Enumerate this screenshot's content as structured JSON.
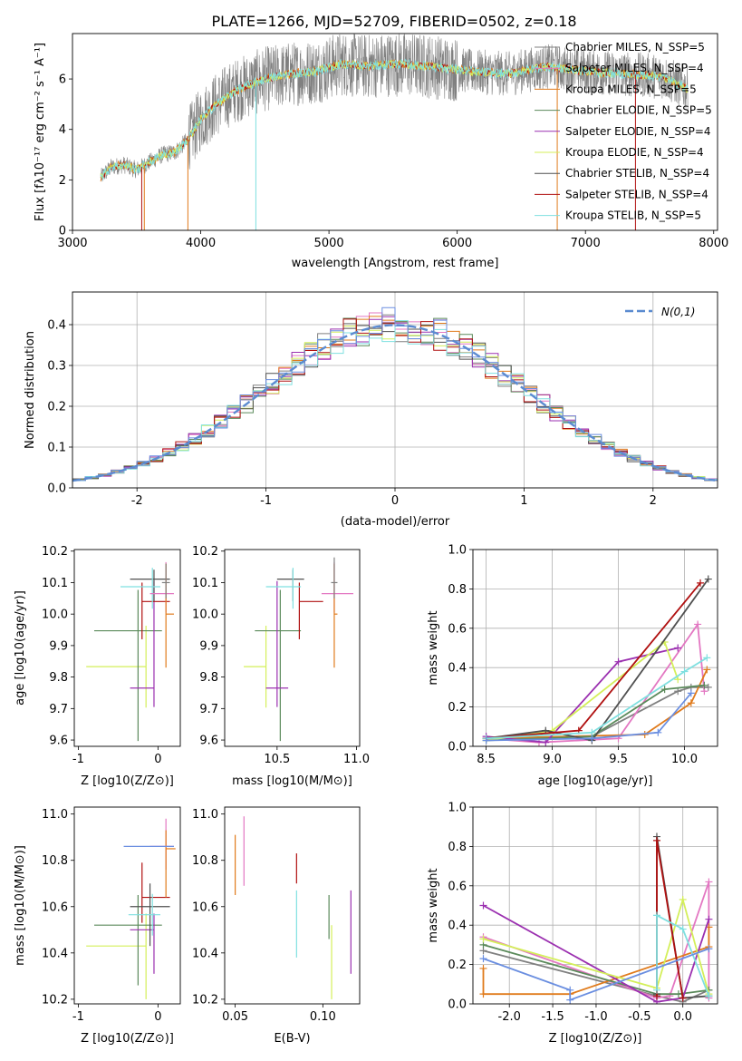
{
  "figure_title": "PLATE=1266, MJD=52709, FIBERID=0502, z=0.18",
  "colors": {
    "Chabrier MILES": "#808080",
    "Salpeter MILES": "#e377c2",
    "Kroupa MILES": "#e07b1c",
    "Chabrier ELODIE": "#5b8a5b",
    "Salpeter ELODIE": "#9b30b0",
    "Kroupa ELODIE": "#d4ef5a",
    "Chabrier STELIB": "#505050",
    "Salpeter STELIB": "#b01010",
    "Kroupa STELIB": "#7fe0e0",
    "blue": "#6a8ee0",
    "gaussian": "#5b8bd0"
  },
  "chart_data": [
    {
      "id": "spectrum",
      "type": "line",
      "xlabel": "wavelength [Angstrom, rest frame]",
      "ylabel": "Flux [fλ10⁻¹⁷ erg cm⁻² s⁻¹ A⁻¹]",
      "xlim": [
        3000,
        8030
      ],
      "ylim": [
        0,
        7.8
      ],
      "xticks": [
        3000,
        4000,
        5000,
        6000,
        7000,
        8000
      ],
      "yticks": [
        0,
        2,
        4,
        6
      ],
      "spectrum_continuum": {
        "x": [
          3220,
          3300,
          3400,
          3500,
          3600,
          3700,
          3800,
          3900,
          4000,
          4100,
          4200,
          4300,
          4500,
          4700,
          4900,
          5100,
          5300,
          5500,
          5800,
          6100,
          6400,
          6700,
          7000,
          7300,
          7600,
          7800
        ],
        "y": [
          2.1,
          2.5,
          2.6,
          2.4,
          2.7,
          3.0,
          3.1,
          3.6,
          4.4,
          4.9,
          5.3,
          5.6,
          6.0,
          6.2,
          6.3,
          6.6,
          6.5,
          6.6,
          6.5,
          6.3,
          6.2,
          6.5,
          6.3,
          6.2,
          6.1,
          5.6
        ]
      },
      "legend": [
        "Chabrier MILES, N_SSP=5",
        "Salpeter MILES, N_SSP=4",
        "Kroupa MILES, N_SSP=5",
        "Chabrier ELODIE, N_SSP=5",
        "Salpeter ELODIE, N_SSP=4",
        "Kroupa ELODIE, N_SSP=4",
        "Chabrier STELIB, N_SSP=4",
        "Salpeter STELIB, N_SSP=4",
        "Kroupa STELIB, N_SSP=5"
      ],
      "legend_placement": "right"
    },
    {
      "id": "residuals",
      "type": "histogram",
      "xlabel": "(data-model)/error",
      "ylabel": "Normed distribution",
      "xlim": [
        -2.5,
        2.5
      ],
      "ylim": [
        0,
        0.48
      ],
      "xticks": [
        -2,
        -1,
        0,
        1,
        2
      ],
      "yticks": [
        0.0,
        0.1,
        0.2,
        0.3,
        0.4
      ],
      "bin_width": 0.1,
      "curve_label": "N(0,1)",
      "grid": true,
      "legend_placement": "top-right"
    },
    {
      "id": "age_vs_Z",
      "type": "errorbar",
      "xlabel": "Z [log10(Z/Z⊙)]",
      "ylabel": "age  [log10(age/yr)]",
      "xlim": [
        -1.05,
        0.28
      ],
      "ylim": [
        9.58,
        10.205
      ],
      "xticks": [
        -1,
        0
      ],
      "yticks": [
        9.6,
        9.7,
        9.8,
        9.9,
        10.0,
        10.1,
        10.2
      ],
      "points": [
        {
          "series": "Kroupa ELODIE",
          "x": -0.15,
          "xerr": [
            0.75,
            0.0
          ],
          "y": 9.833,
          "yerr": [
            0.13,
            0.13
          ]
        },
        {
          "series": "Chabrier ELODIE",
          "x": -0.25,
          "xerr": [
            0.55,
            0.3
          ],
          "y": 9.947,
          "yerr": [
            0.35,
            0.13
          ]
        },
        {
          "series": "Salpeter ELODIE",
          "x": -0.05,
          "xerr": [
            0.3,
            0.0
          ],
          "y": 9.765,
          "yerr": [
            0.06,
            0.34
          ]
        },
        {
          "series": "Salpeter STELIB",
          "x": -0.2,
          "xerr": [
            0.0,
            0.35
          ],
          "y": 10.04,
          "yerr": [
            0.12,
            0.06
          ]
        },
        {
          "series": "Chabrier STELIB",
          "x": -0.05,
          "xerr": [
            0.3,
            0.2
          ],
          "y": 10.111,
          "yerr": [
            0.07,
            0.03
          ]
        },
        {
          "series": "Kroupa STELIB",
          "x": -0.07,
          "xerr": [
            0.4,
            0.1
          ],
          "y": 10.087,
          "yerr": [
            0.07,
            0.06
          ]
        },
        {
          "series": "Salpeter MILES",
          "x": 0.1,
          "xerr": [
            0.2,
            0.1
          ],
          "y": 10.065,
          "yerr": [
            0.06,
            0.1
          ]
        },
        {
          "series": "Kroupa MILES",
          "x": 0.1,
          "xerr": [
            0.0,
            0.1
          ],
          "y": 10.0,
          "yerr": [
            0.17,
            0.16
          ]
        },
        {
          "series": "Chabrier MILES",
          "x": 0.1,
          "xerr": [
            0.05,
            0.05
          ],
          "y": 10.1,
          "yerr": [
            0.05,
            0.06
          ]
        }
      ]
    },
    {
      "id": "age_vs_mass",
      "type": "errorbar",
      "xlabel": "mass [log10(M/M⊙)]",
      "ylabel": "",
      "xlim": [
        10.17,
        11.02
      ],
      "ylim": [
        9.58,
        10.205
      ],
      "xticks": [
        10.5,
        11.0
      ],
      "yticks": [
        9.6,
        9.7,
        9.8,
        9.9,
        10.0,
        10.1,
        10.2
      ],
      "points": [
        {
          "series": "Kroupa ELODIE",
          "x": 10.43,
          "xerr": [
            0.14,
            0.0
          ],
          "y": 9.833,
          "yerr": [
            0.13,
            0.13
          ]
        },
        {
          "series": "Chabrier ELODIE",
          "x": 10.52,
          "xerr": [
            0.16,
            0.13
          ],
          "y": 9.947,
          "yerr": [
            0.35,
            0.13
          ]
        },
        {
          "series": "Salpeter ELODIE",
          "x": 10.5,
          "xerr": [
            0.07,
            0.07
          ],
          "y": 9.765,
          "yerr": [
            0.06,
            0.34
          ]
        },
        {
          "series": "Salpeter STELIB",
          "x": 10.64,
          "xerr": [
            0.0,
            0.15
          ],
          "y": 10.04,
          "yerr": [
            0.12,
            0.06
          ]
        },
        {
          "series": "Chabrier STELIB",
          "x": 10.6,
          "xerr": [
            0.1,
            0.07
          ],
          "y": 10.111,
          "yerr": [
            0.07,
            0.03
          ]
        },
        {
          "series": "Kroupa STELIB",
          "x": 10.6,
          "xerr": [
            0.17,
            0.05
          ],
          "y": 10.087,
          "yerr": [
            0.07,
            0.06
          ]
        },
        {
          "series": "Salpeter MILES",
          "x": 10.86,
          "xerr": [
            0.08,
            0.12
          ],
          "y": 10.065,
          "yerr": [
            0.06,
            0.1
          ]
        },
        {
          "series": "Kroupa MILES",
          "x": 10.86,
          "xerr": [
            0.0,
            0.02
          ],
          "y": 10.0,
          "yerr": [
            0.17,
            0.16
          ]
        },
        {
          "series": "Chabrier MILES",
          "x": 10.86,
          "xerr": [
            0.02,
            0.02
          ],
          "y": 10.1,
          "yerr": [
            0.05,
            0.08
          ]
        }
      ]
    },
    {
      "id": "weight_vs_age",
      "type": "line",
      "xlabel": "age  [log10(age/yr)]",
      "ylabel": "mass weight",
      "xlim": [
        8.4,
        10.25
      ],
      "ylim": [
        0.0,
        1.0
      ],
      "xticks": [
        8.5,
        9.0,
        9.5,
        10.0
      ],
      "yticks": [
        0.0,
        0.2,
        0.4,
        0.6,
        0.8,
        1.0
      ],
      "grid": true,
      "series": [
        {
          "name": "Chabrier MILES",
          "x": [
            8.5,
            9.3,
            9.95,
            10.05,
            10.18
          ],
          "y": [
            0.04,
            0.05,
            0.28,
            0.3,
            0.3
          ]
        },
        {
          "name": "Salpeter MILES",
          "x": [
            8.5,
            8.9,
            9.5,
            10.1,
            10.15
          ],
          "y": [
            0.04,
            0.02,
            0.04,
            0.62,
            0.28
          ]
        },
        {
          "name": "Kroupa MILES",
          "x": [
            8.5,
            9.7,
            10.05,
            10.17
          ],
          "y": [
            0.04,
            0.06,
            0.22,
            0.39
          ]
        },
        {
          "name": "Chabrier ELODIE",
          "x": [
            8.5,
            9.3,
            9.85,
            10.15
          ],
          "y": [
            0.03,
            0.05,
            0.29,
            0.31
          ]
        },
        {
          "name": "Salpeter ELODIE",
          "x": [
            8.5,
            8.95,
            9.5,
            9.95
          ],
          "y": [
            0.05,
            0.02,
            0.43,
            0.5
          ]
        },
        {
          "name": "Kroupa ELODIE",
          "x": [
            8.5,
            9.0,
            9.85,
            9.95
          ],
          "y": [
            0.03,
            0.08,
            0.53,
            0.34
          ]
        },
        {
          "name": "Chabrier STELIB",
          "x": [
            8.5,
            8.95,
            9.3,
            10.18
          ],
          "y": [
            0.04,
            0.08,
            0.03,
            0.85
          ]
        },
        {
          "name": "Salpeter STELIB",
          "x": [
            8.5,
            9.2,
            10.12
          ],
          "y": [
            0.04,
            0.08,
            0.83
          ]
        },
        {
          "name": "Kroupa STELIB",
          "x": [
            8.5,
            9.3,
            10.0,
            10.17
          ],
          "y": [
            0.04,
            0.07,
            0.38,
            0.45
          ]
        },
        {
          "name": "blue",
          "x": [
            8.5,
            9.3,
            9.8,
            10.05
          ],
          "y": [
            0.03,
            0.04,
            0.07,
            0.27
          ]
        }
      ]
    },
    {
      "id": "mass_vs_Z",
      "type": "errorbar",
      "xlabel": "Z [log10(Z/Z⊙)]",
      "ylabel": "mass [log10(M/M⊙)]",
      "xlim": [
        -1.05,
        0.28
      ],
      "ylim": [
        10.18,
        11.03
      ],
      "xticks": [
        -1,
        0
      ],
      "yticks": [
        10.2,
        10.4,
        10.6,
        10.8,
        11.0
      ],
      "points": [
        {
          "series": "Kroupa ELODIE",
          "x": -0.15,
          "xerr": [
            0.75,
            0.0
          ],
          "y": 10.43,
          "yerr": [
            0.23,
            0.14
          ]
        },
        {
          "series": "Chabrier ELODIE",
          "x": -0.25,
          "xerr": [
            0.55,
            0.3
          ],
          "y": 10.52,
          "yerr": [
            0.26,
            0.13
          ]
        },
        {
          "series": "Salpeter ELODIE",
          "x": -0.05,
          "xerr": [
            0.3,
            0.0
          ],
          "y": 10.5,
          "yerr": [
            0.19,
            0.07
          ]
        },
        {
          "series": "Salpeter STELIB",
          "x": -0.2,
          "xerr": [
            0.0,
            0.35
          ],
          "y": 10.64,
          "yerr": [
            0.11,
            0.15
          ]
        },
        {
          "series": "Chabrier STELIB",
          "x": -0.1,
          "xerr": [
            0.25,
            0.25
          ],
          "y": 10.6,
          "yerr": [
            0.17,
            0.1
          ]
        },
        {
          "series": "Kroupa STELIB",
          "x": -0.07,
          "xerr": [
            0.3,
            0.1
          ],
          "y": 10.565,
          "yerr": [
            0.09,
            0.09
          ]
        },
        {
          "series": "Salpeter MILES",
          "x": 0.1,
          "xerr": [
            0.2,
            0.1
          ],
          "y": 10.86,
          "yerr": [
            0.1,
            0.12
          ]
        },
        {
          "series": "Kroupa MILES",
          "x": 0.1,
          "xerr": [
            0.0,
            0.12
          ],
          "y": 10.85,
          "yerr": [
            0.21,
            0.08
          ]
        },
        {
          "series": "blue",
          "x": -0.05,
          "xerr": [
            0.38,
            0.25
          ],
          "y": 10.86,
          "yerr": [
            0.0,
            0.0
          ]
        }
      ]
    },
    {
      "id": "mass_vs_ebv",
      "type": "errorbar",
      "xlabel": "E(B-V)",
      "ylabel": "",
      "xlim": [
        0.044,
        0.121
      ],
      "ylim": [
        10.18,
        11.03
      ],
      "xticks": [
        0.05,
        0.1
      ],
      "yticks": [
        10.2,
        10.4,
        10.6,
        10.8,
        11.0
      ],
      "points": [
        {
          "series": "Kroupa MILES",
          "x": 0.05,
          "y": 10.77,
          "yerr": [
            0.12,
            0.14
          ]
        },
        {
          "series": "Salpeter MILES",
          "x": 0.055,
          "y": 10.84,
          "yerr": [
            0.15,
            0.15
          ]
        },
        {
          "series": "Salpeter STELIB",
          "x": 0.085,
          "y": 10.76,
          "yerr": [
            0.06,
            0.07
          ]
        },
        {
          "series": "Kroupa STELIB",
          "x": 0.085,
          "y": 10.52,
          "yerr": [
            0.14,
            0.15
          ]
        },
        {
          "series": "Chabrier ELODIE",
          "x": 0.1035,
          "y": 10.5,
          "yerr": [
            0.04,
            0.15
          ]
        },
        {
          "series": "Kroupa ELODIE",
          "x": 0.105,
          "y": 10.36,
          "yerr": [
            0.16,
            0.16
          ]
        },
        {
          "series": "Salpeter ELODIE",
          "x": 0.116,
          "y": 10.49,
          "yerr": [
            0.18,
            0.18
          ]
        }
      ]
    },
    {
      "id": "weight_vs_Z",
      "type": "line",
      "xlabel": "Z [log10(Z/Z⊙)]",
      "ylabel": "mass weight",
      "xlim": [
        -2.42,
        0.4
      ],
      "ylim": [
        0.0,
        1.0
      ],
      "xticks": [
        -2.0,
        -1.5,
        -1.0,
        -0.5,
        0.0
      ],
      "yticks": [
        0.0,
        0.2,
        0.4,
        0.6,
        0.8,
        1.0
      ],
      "grid": true,
      "series": [
        {
          "name": "Chabrier MILES",
          "x": [
            -2.3,
            -0.3,
            0.0,
            0.3
          ],
          "y": [
            0.27,
            0.04,
            0.01,
            0.07
          ]
        },
        {
          "name": "Salpeter MILES",
          "x": [
            -2.3,
            -0.3,
            -0.15,
            0.3,
            0.3
          ],
          "y": [
            0.34,
            0.03,
            0.04,
            0.62,
            0.03
          ]
        },
        {
          "name": "Kroupa MILES",
          "x": [
            -2.3,
            -2.3,
            -1.3,
            0.3,
            0.3
          ],
          "y": [
            0.18,
            0.05,
            0.05,
            0.29,
            0.39
          ]
        },
        {
          "name": "Chabrier ELODIE",
          "x": [
            -2.3,
            -0.3,
            -0.05,
            0.3
          ],
          "y": [
            0.3,
            0.05,
            0.05,
            0.07
          ]
        },
        {
          "name": "Salpeter ELODIE",
          "x": [
            -2.3,
            -0.3,
            0.0,
            0.3
          ],
          "y": [
            0.5,
            0.01,
            0.03,
            0.43
          ]
        },
        {
          "name": "Kroupa ELODIE",
          "x": [
            -2.3,
            -0.3,
            0.0,
            0.3
          ],
          "y": [
            0.33,
            0.08,
            0.53,
            0.05
          ]
        },
        {
          "name": "Chabrier STELIB",
          "x": [
            -0.3,
            -0.3,
            0.0,
            0.3
          ],
          "y": [
            0.05,
            0.85,
            0.03,
            0.04
          ]
        },
        {
          "name": "Salpeter STELIB",
          "x": [
            -0.3,
            -0.3,
            0.0
          ],
          "y": [
            0.04,
            0.83,
            0.03
          ]
        },
        {
          "name": "Kroupa STELIB",
          "x": [
            -0.3,
            -0.3,
            0.0,
            0.3
          ],
          "y": [
            0.07,
            0.45,
            0.38,
            0.04
          ]
        },
        {
          "name": "blue",
          "x": [
            -2.3,
            -1.3,
            -1.3,
            0.3
          ],
          "y": [
            0.23,
            0.07,
            0.02,
            0.28
          ]
        }
      ]
    }
  ]
}
